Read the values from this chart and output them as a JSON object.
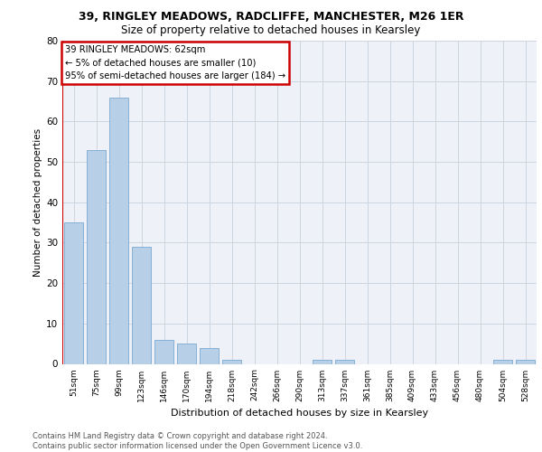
{
  "title_line1": "39, RINGLEY MEADOWS, RADCLIFFE, MANCHESTER, M26 1ER",
  "title_line2": "Size of property relative to detached houses in Kearsley",
  "xlabel": "Distribution of detached houses by size in Kearsley",
  "ylabel": "Number of detached properties",
  "footnote": "Contains HM Land Registry data © Crown copyright and database right 2024.\nContains public sector information licensed under the Open Government Licence v3.0.",
  "bar_labels": [
    "51sqm",
    "75sqm",
    "99sqm",
    "123sqm",
    "146sqm",
    "170sqm",
    "194sqm",
    "218sqm",
    "242sqm",
    "266sqm",
    "290sqm",
    "313sqm",
    "337sqm",
    "361sqm",
    "385sqm",
    "409sqm",
    "433sqm",
    "456sqm",
    "480sqm",
    "504sqm",
    "528sqm"
  ],
  "bar_values": [
    35,
    53,
    66,
    29,
    6,
    5,
    4,
    1,
    0,
    0,
    0,
    1,
    1,
    0,
    0,
    0,
    0,
    0,
    0,
    1,
    1
  ],
  "bar_color": "#b8cfe8",
  "bar_edge_color": "#7aaad0",
  "ylim": [
    0,
    80
  ],
  "yticks": [
    0,
    10,
    20,
    30,
    40,
    50,
    60,
    70,
    80
  ],
  "annotation_box_text": "39 RINGLEY MEADOWS: 62sqm\n← 5% of detached houses are smaller (10)\n95% of semi-detached houses are larger (184) →",
  "annotation_box_color": "#cc0000",
  "grid_color": "#ccd5e0",
  "background_color": "#eef2f8",
  "fig_bg_color": "#ffffff"
}
